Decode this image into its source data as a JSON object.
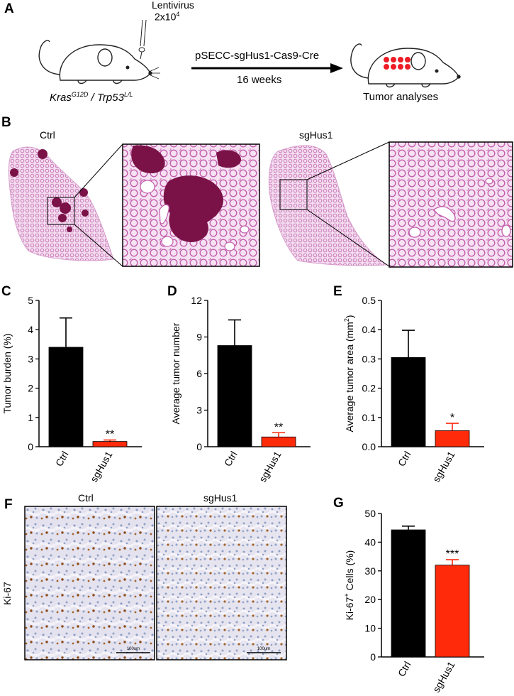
{
  "panels": {
    "a": {
      "letter": "A",
      "lentivirus_label": "Lentivirus",
      "dose_base": "2x10",
      "dose_exp": "4",
      "construct_label": "pSECC-sgHus1-Cas9-Cre",
      "duration_label": "16 weeks",
      "genotype_kras": "Kras",
      "genotype_kras_sup": "G12D",
      "genotype_sep": " / ",
      "genotype_trp53": "Trp53",
      "genotype_trp53_sup": "L/L",
      "outcome_label": "Tumor analyses"
    },
    "b": {
      "letter": "B",
      "ctrl_label": "Ctrl",
      "sghus1_label": "sgHus1"
    },
    "c": {
      "letter": "C"
    },
    "d": {
      "letter": "D"
    },
    "e": {
      "letter": "E"
    },
    "f": {
      "letter": "F",
      "ctrl_label": "Ctrl",
      "sghus1_label": "sgHus1",
      "row_label": "Ki-67",
      "scale_left": "100um",
      "scale_right": "100um"
    },
    "g": {
      "letter": "G"
    }
  },
  "colors": {
    "ctrl": "#000000",
    "sghus1": "#ff2a0a",
    "he_stain": "#c873b4",
    "tumor": "#7a1248",
    "dab": "#8a4a1a"
  },
  "chart_data": [
    {
      "id": "C",
      "type": "bar",
      "categories": [
        "Ctrl",
        "sgHus1"
      ],
      "values": [
        3.4,
        0.18
      ],
      "errors": [
        1.0,
        0.05
      ],
      "ylabel": "Tumor burden (%)",
      "ylim": [
        0,
        5
      ],
      "yticks": [
        "0",
        "1",
        "2",
        "3",
        "4",
        "5"
      ],
      "significance": [
        "",
        "**"
      ]
    },
    {
      "id": "D",
      "type": "bar",
      "categories": [
        "Ctrl",
        "sgHus1"
      ],
      "values": [
        8.3,
        0.8
      ],
      "errors": [
        2.1,
        0.35
      ],
      "ylabel": "Average tumor number",
      "ylim": [
        0,
        12
      ],
      "yticks": [
        "0",
        "3",
        "6",
        "9",
        "12"
      ],
      "significance": [
        "",
        "**"
      ]
    },
    {
      "id": "E",
      "type": "bar",
      "categories": [
        "Ctrl",
        "sgHus1"
      ],
      "values": [
        0.305,
        0.055
      ],
      "errors": [
        0.093,
        0.025
      ],
      "ylabel_base": "Average tumor area (mm",
      "ylabel_sup": "2",
      "ylabel_end": ")",
      "ylim": [
        0,
        0.5
      ],
      "yticks": [
        "0.0",
        "0.1",
        "0.2",
        "0.3",
        "0.4",
        "0.5"
      ],
      "significance": [
        "",
        "*"
      ]
    },
    {
      "id": "G",
      "type": "bar",
      "categories": [
        "Ctrl",
        "sgHus1"
      ],
      "values": [
        44.3,
        32.0
      ],
      "errors": [
        1.3,
        1.9
      ],
      "ylabel_base": "Ki-67",
      "ylabel_sup": "+",
      "ylabel_end": " Cells (%)",
      "ylim": [
        0,
        50
      ],
      "yticks": [
        "0",
        "10",
        "20",
        "30",
        "40",
        "50"
      ],
      "significance": [
        "",
        "***"
      ]
    }
  ]
}
